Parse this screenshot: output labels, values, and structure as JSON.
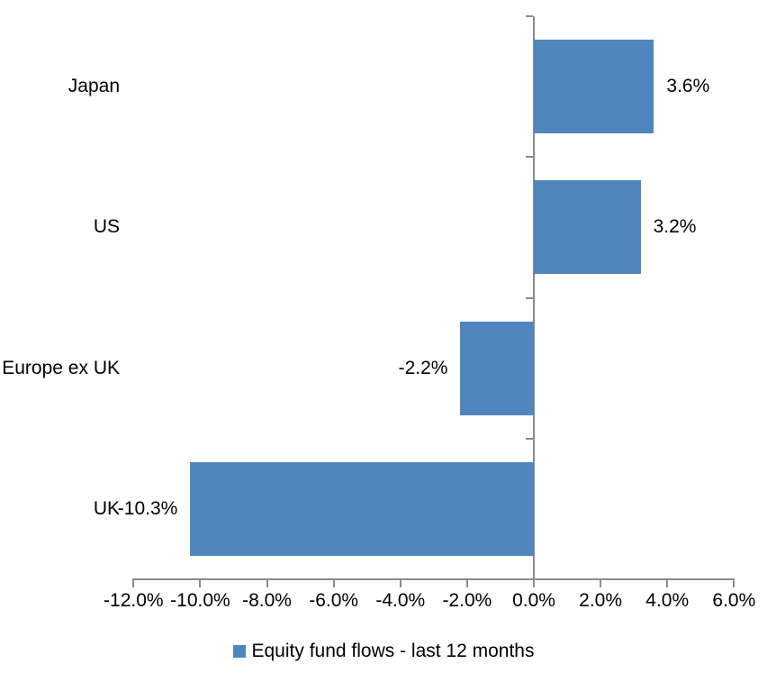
{
  "chart_data": {
    "type": "bar",
    "orientation": "horizontal",
    "title": "",
    "categories": [
      "Japan",
      "US",
      "Europe ex UK",
      "UK"
    ],
    "values": [
      3.6,
      3.2,
      -2.2,
      -10.3
    ],
    "data_labels": [
      "3.6%",
      "3.2%",
      "-2.2%",
      "-10.3%"
    ],
    "xlim": [
      -12,
      6
    ],
    "x_ticks": [
      -12,
      -10,
      -8,
      -6,
      -4,
      -2,
      0,
      2,
      4,
      6
    ],
    "x_tick_labels": [
      "-12.0%",
      "-10.0%",
      "-8.0%",
      "-6.0%",
      "-4.0%",
      "-2.0%",
      "0.0%",
      "2.0%",
      "4.0%",
      "6.0%"
    ],
    "grid": false,
    "legend_position": "bottom",
    "legend": [
      {
        "label": "Equity fund flows - last 12 months",
        "color": "#4F86BD"
      }
    ],
    "bar_color": "#4F86BD",
    "axis_color": "#8C8C8C",
    "text_color": "#000000"
  }
}
